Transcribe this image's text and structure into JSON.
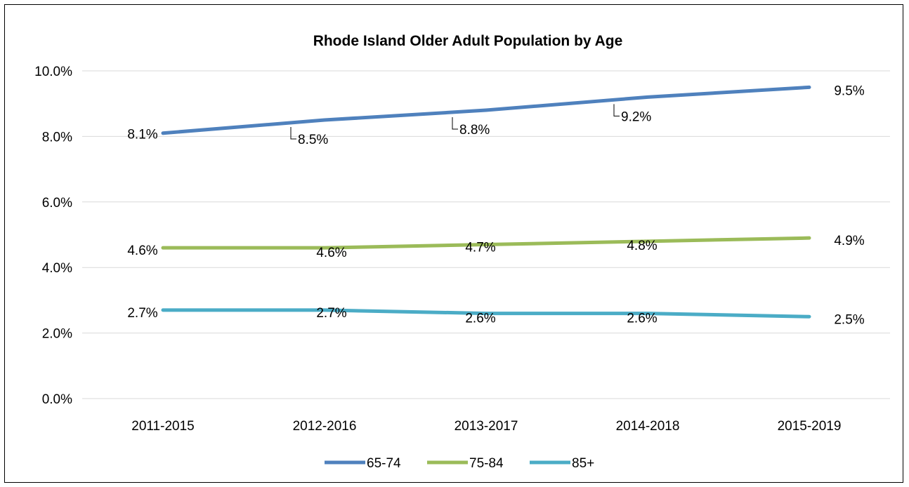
{
  "chart_data": {
    "type": "line",
    "title": "Rhode Island Older Adult Population by Age",
    "categories": [
      "2011-2015",
      "2012-2016",
      "2013-2017",
      "2014-2018",
      "2015-2019"
    ],
    "series": [
      {
        "name": "65-74",
        "color": "#4f81bd",
        "values": [
          8.1,
          8.5,
          8.8,
          9.2,
          9.5
        ],
        "labels": [
          "8.1%",
          "8.5%",
          "8.8%",
          "9.2%",
          "9.5%"
        ]
      },
      {
        "name": "75-84",
        "color": "#9bbb59",
        "values": [
          4.6,
          4.6,
          4.7,
          4.8,
          4.9
        ],
        "labels": [
          "4.6%",
          "4.6%",
          "4.7%",
          "4.8%",
          "4.9%"
        ]
      },
      {
        "name": "85+",
        "color": "#4bacc6",
        "values": [
          2.7,
          2.7,
          2.6,
          2.6,
          2.5
        ],
        "labels": [
          "2.7%",
          "2.7%",
          "2.6%",
          "2.6%",
          "2.5%"
        ]
      }
    ],
    "ylim": [
      0,
      10
    ],
    "yticks": [
      "0.0%",
      "2.0%",
      "4.0%",
      "6.0%",
      "8.0%",
      "10.0%"
    ],
    "xlabel": "",
    "ylabel": "",
    "grid": true,
    "legend_position": "bottom"
  }
}
